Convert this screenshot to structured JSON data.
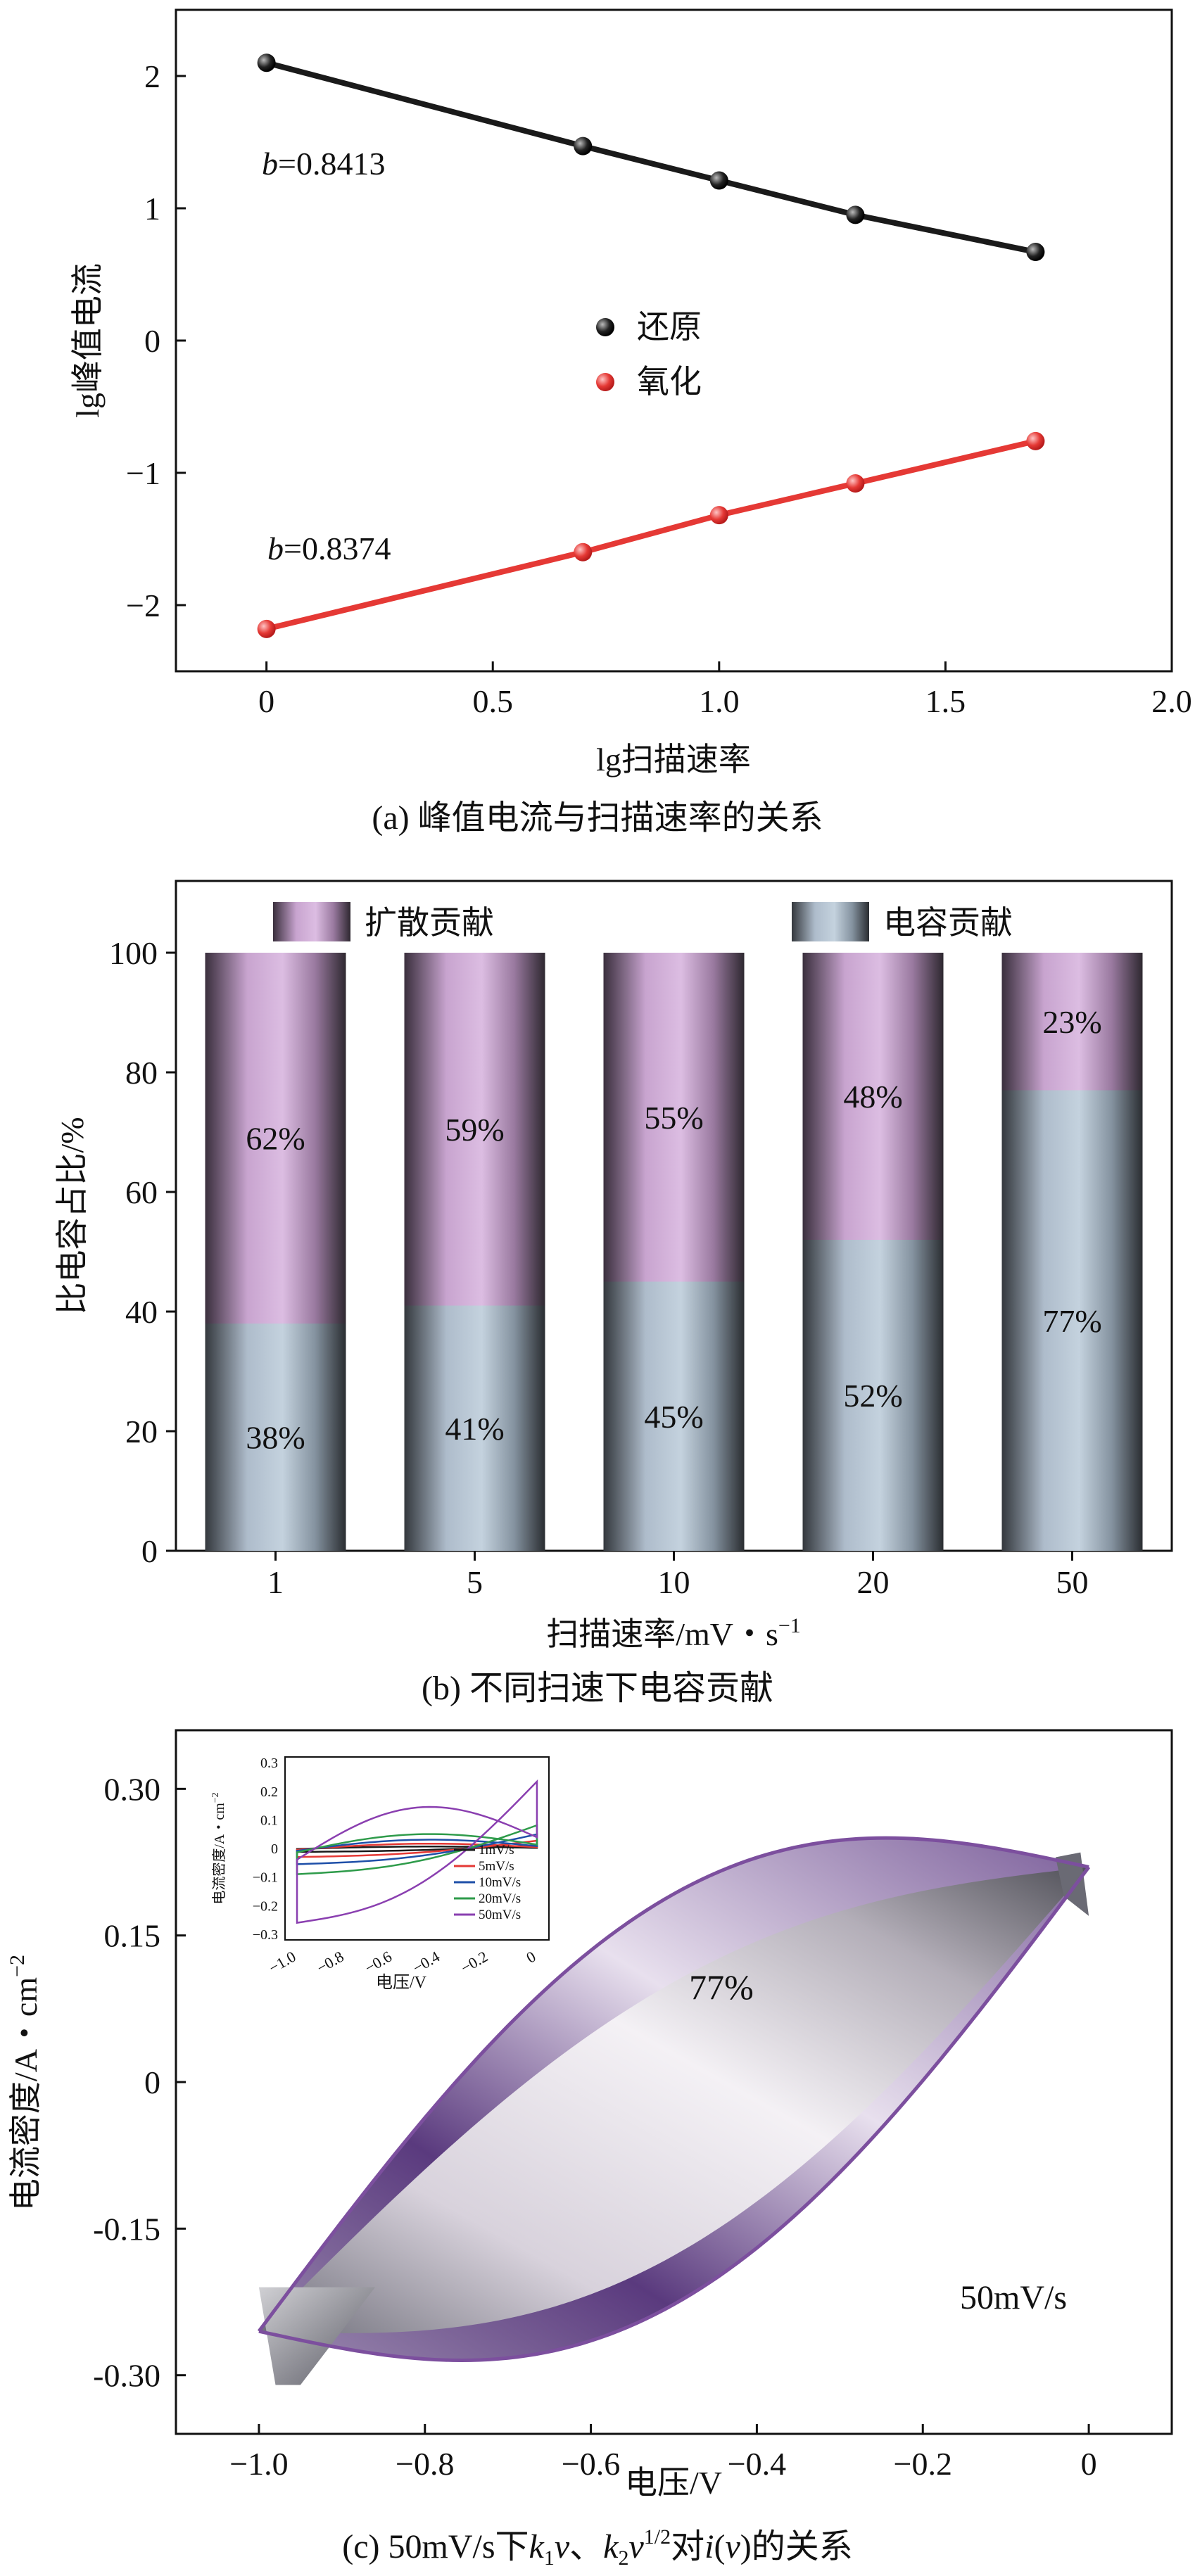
{
  "figure": {
    "panels": [
      {
        "caption": "(a) 峰值电流与扫描速率的关系",
        "chart_data": {
          "type": "scatter",
          "xlabel": "lg扫描速率",
          "ylabel": "lg峰值电流",
          "xlim": [
            -0.2,
            2.0
          ],
          "ylim": [
            -2.5,
            2.5
          ],
          "xticks": [
            0,
            0.5,
            1.0,
            1.5,
            2.0
          ],
          "yticks": [
            2,
            1,
            0,
            -1,
            -2
          ],
          "xtick_labels": [
            "0",
            "0.5",
            "1.0",
            "1.5",
            "2.0"
          ],
          "ytick_labels": [
            "2",
            "1",
            "0",
            "−1",
            "−2"
          ],
          "series": [
            {
              "name": "还原",
              "color": "#1a1a1a",
              "b_label": "b",
              "b_value": "=0.8413",
              "x": [
                0,
                0.699,
                1.0,
                1.301,
                1.699
              ],
              "y": [
                2.1,
                1.47,
                1.21,
                0.95,
                0.67
              ]
            },
            {
              "name": "氧化",
              "color": "#e53935",
              "b_label": "b",
              "b_value": "=0.8374",
              "x": [
                0,
                0.699,
                1.0,
                1.301,
                1.699
              ],
              "y": [
                -2.18,
                -1.6,
                -1.32,
                -1.08,
                -0.76
              ]
            }
          ]
        }
      },
      {
        "caption": "(b) 不同扫速下电容贡献",
        "chart_data": {
          "type": "bar",
          "stacked": true,
          "xlabel": "扫描速率/mV・s",
          "xlabel_sup": "−1",
          "ylabel": "比电容占比/%",
          "ylim": [
            0,
            112
          ],
          "yticks": [
            0,
            20,
            40,
            60,
            80,
            100
          ],
          "ytick_labels": [
            "0",
            "20",
            "40",
            "60",
            "80",
            "100"
          ],
          "categories": [
            "1",
            "5",
            "10",
            "20",
            "50"
          ],
          "series": [
            {
              "name": "电容贡献",
              "color": "#b8c7d6",
              "values": [
                38,
                41,
                45,
                52,
                77
              ]
            },
            {
              "name": "扩散贡献",
              "color": "#d6b4dc",
              "values": [
                62,
                59,
                55,
                48,
                23
              ]
            }
          ],
          "legend": [
            "扩散贡献",
            "电容贡献"
          ]
        }
      },
      {
        "caption_parts": [
          "(c) 50mV/s下",
          "k",
          "1",
          "v",
          "、",
          "k",
          "2",
          "v",
          "1/2",
          "对",
          "i",
          "(",
          "v",
          ")的关系"
        ],
        "chart_data": {
          "type": "line",
          "xlabel": "电压/V",
          "ylabel": "电流密度/A・cm",
          "ylabel_sup": "−2",
          "xlim": [
            -1.1,
            0.1
          ],
          "ylim": [
            -0.36,
            0.36
          ],
          "xticks": [
            -1.0,
            -0.8,
            -0.6,
            -0.4,
            -0.2,
            0
          ],
          "xtick_labels": [
            "−1.0",
            "−0.8",
            "−0.6",
            "−0.4",
            "−0.2",
            "0"
          ],
          "yticks": [
            0.3,
            0.15,
            0,
            -0.15,
            -0.3
          ],
          "ytick_labels": [
            "0.30",
            "0.15",
            "0",
            "-0.15",
            "-0.30"
          ],
          "annotation_percent": "77%",
          "scan_rate_label": "50mV/s",
          "inset": {
            "type": "line",
            "xlabel": "电压/V",
            "ylabel": "电流密度/A・cm",
            "ylabel_sup": "−2",
            "xlim": [
              -1.05,
              0.05
            ],
            "ylim": [
              -0.32,
              0.32
            ],
            "xtick_labels": [
              "−1.0",
              "−0.8",
              "−0.6",
              "−0.4",
              "−0.2",
              "0"
            ],
            "ytick_labels": [
              "0.3",
              "0.2",
              "0.1",
              "0",
              "−0.1",
              "−0.2",
              "−0.3"
            ],
            "series": [
              {
                "name": "1mV/s",
                "color": "#1a1a1a",
                "amp": 0.012
              },
              {
                "name": "5mV/s",
                "color": "#e53935",
                "amp": 0.03
              },
              {
                "name": "10mV/s",
                "color": "#1e4fa8",
                "amp": 0.055
              },
              {
                "name": "20mV/s",
                "color": "#2e9b4a",
                "amp": 0.09
              },
              {
                "name": "50mV/s",
                "color": "#8a3fb0",
                "amp": 0.26
              }
            ]
          }
        }
      }
    ]
  }
}
